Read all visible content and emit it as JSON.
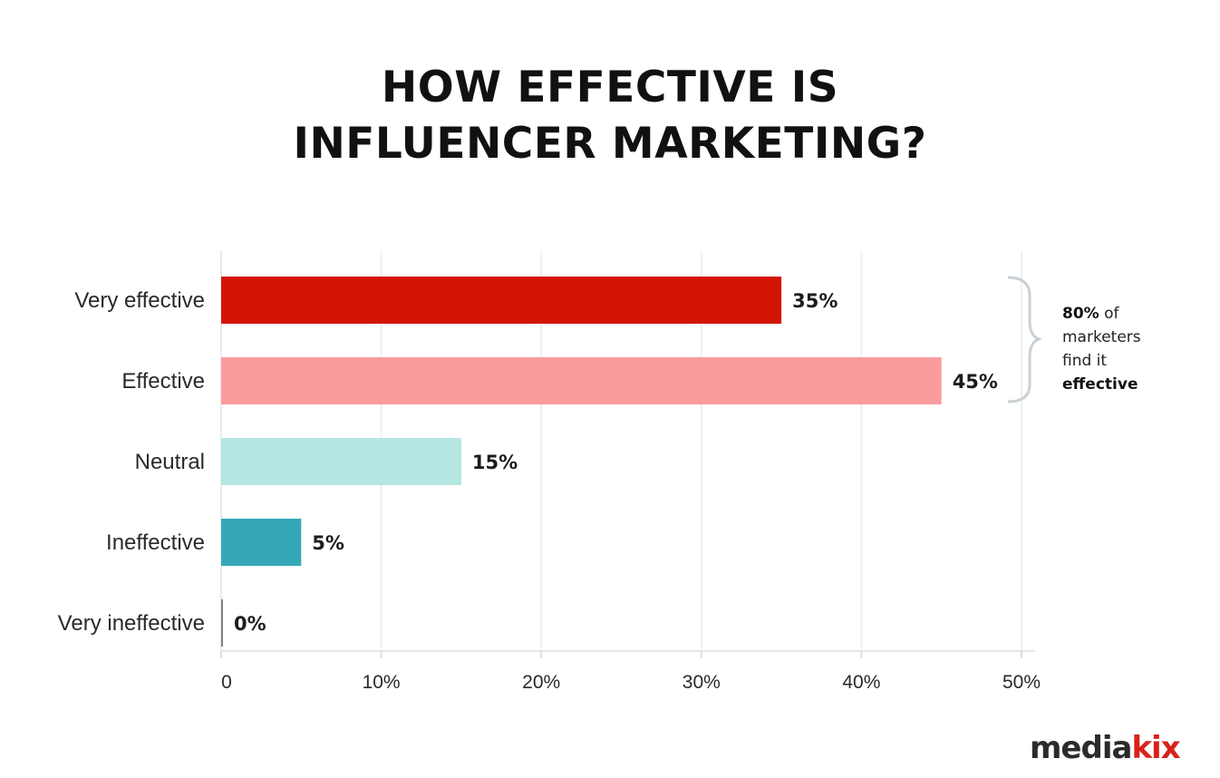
{
  "chart_data": {
    "type": "bar",
    "orientation": "horizontal",
    "title": [
      "HOW EFFECTIVE IS",
      "INFLUENCER MARKETING?"
    ],
    "categories": [
      "Very effective",
      "Effective",
      "Neutral",
      "Ineffective",
      "Very ineffective"
    ],
    "values": [
      35,
      45,
      15,
      5,
      0
    ],
    "value_labels": [
      "35%",
      "45%",
      "15%",
      "5%",
      "0%"
    ],
    "colors": [
      "#d31405",
      "#fb9b9d",
      "#b4e6e2",
      "#34a8b7",
      "#7d8184"
    ],
    "xlim": [
      0,
      50
    ],
    "xticks": [
      "0",
      "10%",
      "20%",
      "30%",
      "40%",
      "50%"
    ],
    "grid": true,
    "annotation": {
      "applies_to": [
        "Very effective",
        "Effective"
      ],
      "bold_lead": "80%",
      "text_1": " of",
      "text_2": "marketers",
      "text_3": "find it",
      "bold_tail": "effective"
    }
  },
  "brand": {
    "main": "media",
    "accent": "kix"
  }
}
